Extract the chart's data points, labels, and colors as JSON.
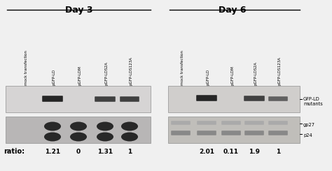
{
  "title_day3": "Day 3",
  "title_day6": "Day 6",
  "bg_color": "#f0f0f0",
  "upper_blot_bg_day3": "#d6d4d4",
  "lower_blot_bg_day3": "#b8b6b6",
  "upper_blot_bg_day6": "#d0cecc",
  "lower_blot_bg_day6": "#c0beba",
  "band_dark": "#252525",
  "band_mid": "#404040",
  "band_light": "#606060",
  "dot_dark": "#282828",
  "dot_day6_light": "#888888",
  "labels_day3": [
    "mock transfection",
    "pGFP-LD",
    "pGFP-LDM",
    "pGFP-LDS2A",
    "pGFP-LDS123A"
  ],
  "labels_day6": [
    "mock transfection",
    "pGFP-LD",
    "pGFP-LDM",
    "pGFP-LDS2A",
    "pGFP-LDS123A"
  ],
  "ratio_day3": [
    "1.21",
    "0",
    "1.31",
    "1"
  ],
  "ratio_day6": [
    "2.01",
    "0.11",
    "1.9",
    "1"
  ],
  "annotation_gfp_line1": "GFP-LD",
  "annotation_gfp_line2": "mutants",
  "annotation_gp27": "gp27",
  "annotation_p24": "p24",
  "ratio_label": "ratio:"
}
